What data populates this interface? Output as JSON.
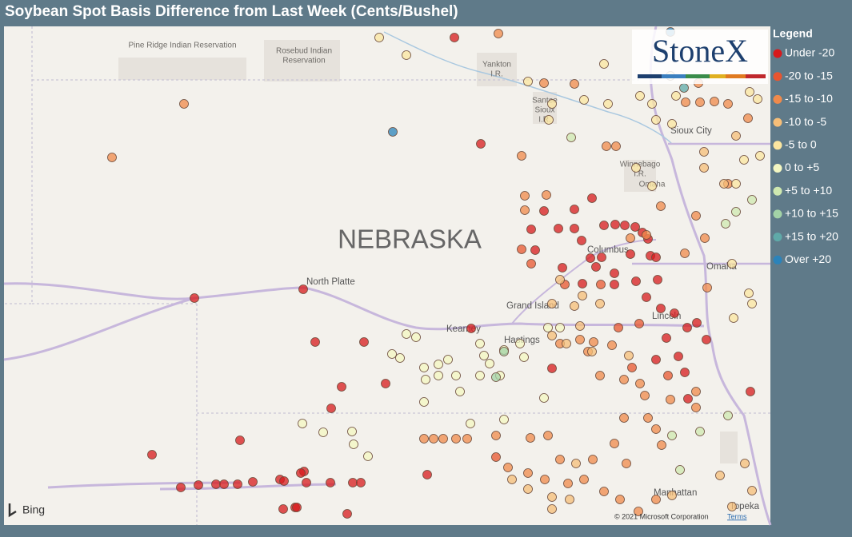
{
  "title": "Soybean Spot Basis Difference from Last Week (Cents/Bushel)",
  "legend": {
    "title": "Legend",
    "items": [
      {
        "label": "Under -20",
        "color": "#d7191c"
      },
      {
        "label": "-20 to -15",
        "color": "#e8552f"
      },
      {
        "label": "-15 to -10",
        "color": "#f08a4b"
      },
      {
        "label": "-10 to -5",
        "color": "#f6be78"
      },
      {
        "label": "-5 to 0",
        "color": "#fbe6a0"
      },
      {
        "label": "0 to +5",
        "color": "#f4f7c2"
      },
      {
        "label": "+5 to +10",
        "color": "#cfe8b0"
      },
      {
        "label": "+10 to +15",
        "color": "#a3d3a7"
      },
      {
        "label": "+15 to +20",
        "color": "#5fa9a8"
      },
      {
        "label": "Over +20",
        "color": "#2b83ba"
      }
    ]
  },
  "logo": "StoneX",
  "map_labels": {
    "pine_ridge": "Pine Ridge Indian Reservation",
    "rosebud": [
      "Rosebud Indian",
      "Reservation"
    ],
    "yankton": [
      "Yankton",
      "I.R."
    ],
    "santee": [
      "Santee",
      "Sioux",
      "I.R."
    ],
    "sioux_city": "Sioux City",
    "winnebago": [
      "Winnebago",
      "I.R."
    ],
    "omaha_ir": "Omaha",
    "state": "NEBRASKA",
    "north_platte": "North Platte",
    "columbus": "Columbus",
    "grand_island": "Grand Island",
    "kearney": "Kearney",
    "hastings": "Hastings",
    "lincoln": "Lincoln",
    "omaha": "Omaha",
    "manhattan": "Manhattan",
    "topeka": "Topeka"
  },
  "bing": "Bing",
  "attribution": "© 2021 Microsoft Corporation",
  "terms": "Terms"
}
